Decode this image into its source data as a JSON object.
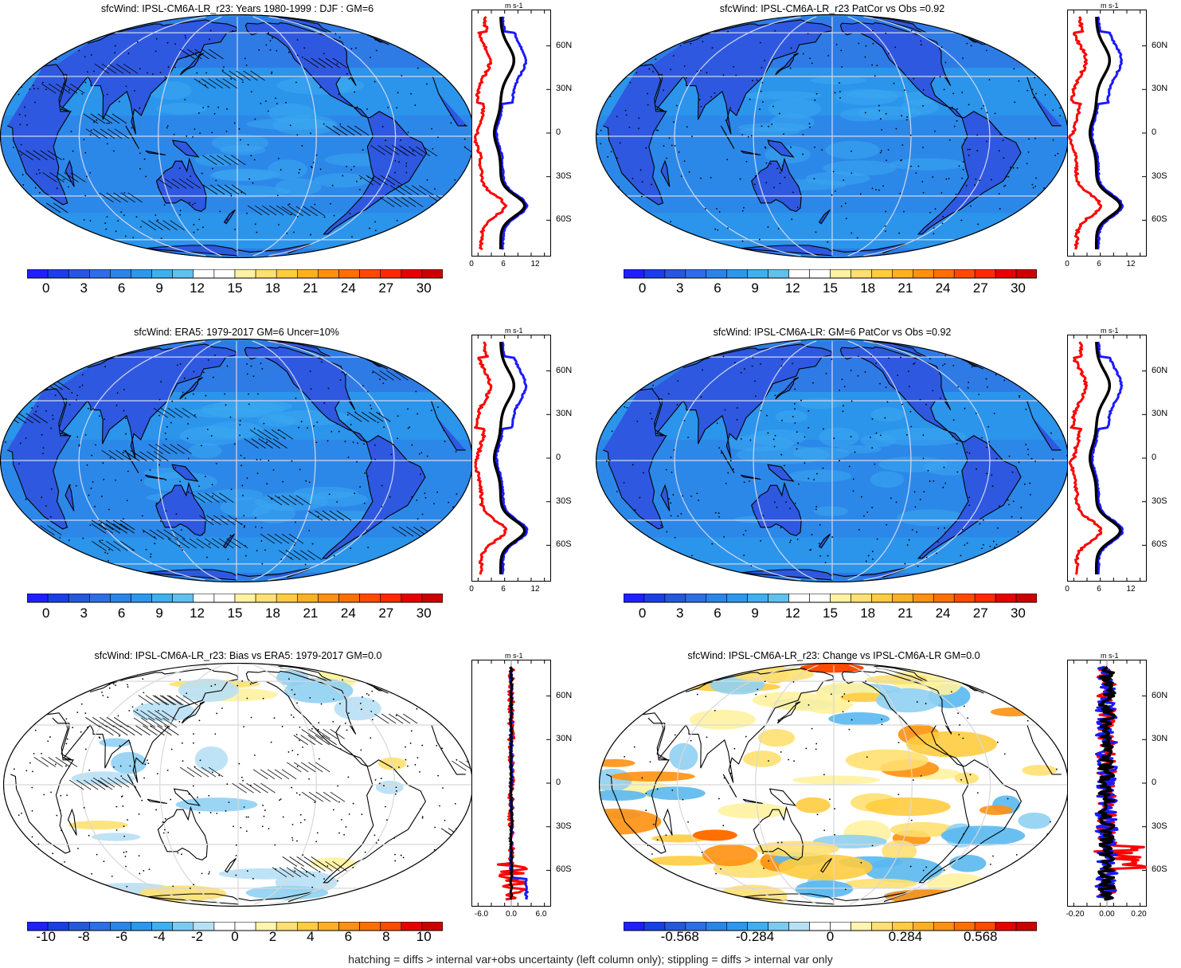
{
  "footnote": "hatching = diffs > internal var+obs uncertainty (left column only); stippling = diffs > internal var only",
  "colors": {
    "land_fill": "#2f58e0",
    "ocean_fill": "#2e8fe6",
    "grid": "#d8d8d8",
    "series_red": "#ff0000",
    "series_blue": "#1a1aff",
    "series_black": "#000000"
  },
  "chart_data": [
    {
      "type": "heatmap",
      "id": "p1",
      "title": "sfcWind: IPSL-CM6A-LR_r23: Years 1980-1999 : DJF : GM=6",
      "colorbar": {
        "labels": [
          "0",
          "3",
          "6",
          "9",
          "12",
          "15",
          "18",
          "21",
          "24",
          "27",
          "30"
        ],
        "range": [
          -1.5,
          31.5
        ]
      },
      "zonal": {
        "unit": "m s-1",
        "xticks": [
          "0",
          "6",
          "12"
        ],
        "xlim": [
          0,
          15
        ],
        "lat_ticks": [
          "60N",
          "30N",
          "0",
          "30S",
          "60S"
        ],
        "style": "mean"
      }
    },
    {
      "type": "heatmap",
      "id": "p2",
      "title": "sfcWind: IPSL-CM6A-LR_r23 PatCor vs Obs =0.92",
      "colorbar": {
        "labels": [
          "0",
          "3",
          "6",
          "9",
          "12",
          "15",
          "18",
          "21",
          "24",
          "27",
          "30"
        ],
        "range": [
          -1.5,
          31.5
        ]
      },
      "zonal": {
        "unit": "m s-1",
        "xticks": [
          "0",
          "6",
          "12"
        ],
        "xlim": [
          0,
          15
        ],
        "lat_ticks": [
          "60N",
          "30N",
          "0",
          "30S",
          "60S"
        ],
        "style": "mean"
      }
    },
    {
      "type": "heatmap",
      "id": "p3",
      "title": "sfcWind: ERA5: 1979-2017 GM=6 Uncer=10%",
      "colorbar": {
        "labels": [
          "0",
          "3",
          "6",
          "9",
          "12",
          "15",
          "18",
          "21",
          "24",
          "27",
          "30"
        ],
        "range": [
          -1.5,
          31.5
        ]
      },
      "zonal": {
        "unit": "m s-1",
        "xticks": [
          "0",
          "6",
          "12"
        ],
        "xlim": [
          0,
          15
        ],
        "lat_ticks": [
          "60N",
          "30N",
          "0",
          "30S",
          "60S"
        ],
        "style": "mean"
      }
    },
    {
      "type": "heatmap",
      "id": "p4",
      "title": "sfcWind: IPSL-CM6A-LR: GM=6 PatCor vs Obs =0.92",
      "colorbar": {
        "labels": [
          "0",
          "3",
          "6",
          "9",
          "12",
          "15",
          "18",
          "21",
          "24",
          "27",
          "30"
        ],
        "range": [
          -1.5,
          31.5
        ]
      },
      "zonal": {
        "unit": "m s-1",
        "xticks": [
          "0",
          "6",
          "12"
        ],
        "xlim": [
          0,
          15
        ],
        "lat_ticks": [
          "60N",
          "30N",
          "0",
          "30S",
          "60S"
        ],
        "style": "mean"
      }
    },
    {
      "type": "heatmap",
      "id": "p5",
      "title": "sfcWind: IPSL-CM6A-LR_r23: Bias vs ERA5: 1979-2017 GM=0.0",
      "colorbar": {
        "labels": [
          "-10",
          "-8",
          "-6",
          "-4",
          "-2",
          "0",
          "2",
          "4",
          "6",
          "8",
          "10"
        ],
        "range": [
          -11,
          11
        ]
      },
      "zonal": {
        "unit": "m s-1",
        "xticks": [
          "-6.0",
          "0.0",
          "6.0"
        ],
        "xlim": [
          -8,
          8
        ],
        "lat_ticks": [
          "60N",
          "30N",
          "0",
          "30S",
          "60S"
        ],
        "style": "diff"
      }
    },
    {
      "type": "heatmap",
      "id": "p6",
      "title": "sfcWind: IPSL-CM6A-LR_r23: Change vs IPSL-CM6A-LR GM=0.0",
      "colorbar": {
        "labels": [
          "-0.568",
          "-0.284",
          "0",
          "0.284",
          "0.568"
        ],
        "label_positions": [
          -0.568,
          -0.284,
          0,
          0.284,
          0.568
        ],
        "range": [
          -0.781,
          0.781
        ]
      },
      "zonal": {
        "unit": "m s-1",
        "xticks": [
          "-0.20",
          "0.00",
          "0.20"
        ],
        "xlim": [
          -0.25,
          0.25
        ],
        "lat_ticks": [
          "60N",
          "30N",
          "0",
          "30S",
          "60S"
        ],
        "style": "change"
      }
    }
  ]
}
